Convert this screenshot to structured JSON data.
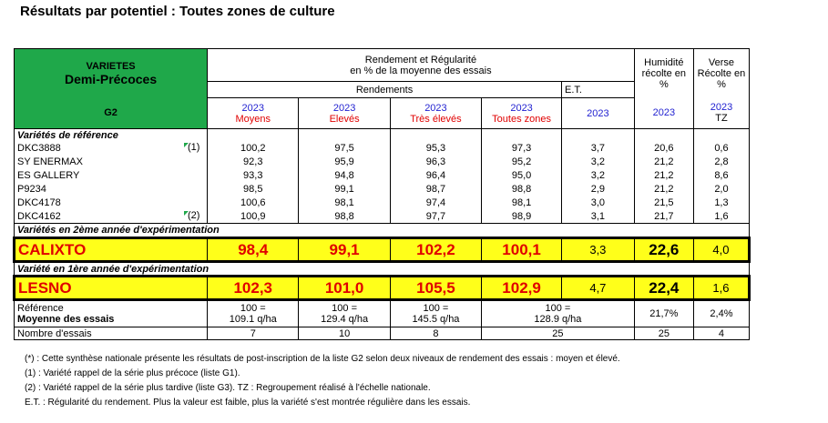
{
  "title": "Résultats par potentiel : Toutes zones de culture",
  "header": {
    "varietes": "VARIETES",
    "group": "Demi-Précoces",
    "list": "G2",
    "rendement_line1": "Rendement et Régularité",
    "rendement_line2": "en % de la moyenne des essais",
    "rendements": "Rendements",
    "et": "E.T.",
    "humidite_line1": "Humidité",
    "humidite_line2": "récolte en",
    "humidite_line3": "%",
    "verse_line1": "Verse",
    "verse_line2": "Récolte en",
    "verse_line3": "%",
    "year": "2023",
    "moyens": "Moyens",
    "eleves": "Elevés",
    "tres_eleves": "Très élevés",
    "toutes_zones": "Toutes zones",
    "tz": "TZ"
  },
  "sections": {
    "reference": "Variétés de référence",
    "second_year": "Variétés en 2ème année d'expérimentation",
    "first_year": "Variété en 1ère année d'expérimentation"
  },
  "reference_rows": [
    {
      "name": "DKC3888",
      "tag": "(1)",
      "moyens": "100,2",
      "eleves": "97,5",
      "tres_eleves": "95,3",
      "toutes": "97,3",
      "et": "3,7",
      "hum": "20,6",
      "verse": "0,6"
    },
    {
      "name": "SY ENERMAX",
      "tag": "",
      "moyens": "92,3",
      "eleves": "95,9",
      "tres_eleves": "96,3",
      "toutes": "95,2",
      "et": "3,2",
      "hum": "21,2",
      "verse": "2,8"
    },
    {
      "name": "ES GALLERY",
      "tag": "",
      "moyens": "93,3",
      "eleves": "94,8",
      "tres_eleves": "96,4",
      "toutes": "95,0",
      "et": "3,2",
      "hum": "21,2",
      "verse": "8,6"
    },
    {
      "name": "P9234",
      "tag": "",
      "moyens": "98,5",
      "eleves": "99,1",
      "tres_eleves": "98,7",
      "toutes": "98,8",
      "et": "2,9",
      "hum": "21,2",
      "verse": "2,0"
    },
    {
      "name": "DKC4178",
      "tag": "",
      "moyens": "100,6",
      "eleves": "98,1",
      "tres_eleves": "97,4",
      "toutes": "98,1",
      "et": "3,0",
      "hum": "21,5",
      "verse": "1,3"
    },
    {
      "name": "DKC4162",
      "tag": "(2)",
      "moyens": "100,9",
      "eleves": "98,8",
      "tres_eleves": "97,7",
      "toutes": "98,9",
      "et": "3,1",
      "hum": "21,7",
      "verse": "1,6"
    }
  ],
  "calixto": {
    "name": "CALIXTO",
    "moyens": "98,4",
    "eleves": "99,1",
    "tres_eleves": "102,2",
    "toutes": "100,1",
    "et": "3,3",
    "hum": "22,6",
    "verse": "4,0"
  },
  "lesno": {
    "name": "LESNO",
    "moyens": "102,3",
    "eleves": "101,0",
    "tres_eleves": "105,5",
    "toutes": "102,9",
    "et": "4,7",
    "hum": "22,4",
    "verse": "1,6"
  },
  "reference_row": {
    "label1": "Référence",
    "label2": "Moyenne des essais",
    "moyens1": "100 =",
    "moyens2": "109.1 q/ha",
    "eleves1": "100 =",
    "eleves2": "129.4 q/ha",
    "tres1": "100 =",
    "tres2": "145.5 q/ha",
    "toutes1": "100 =",
    "toutes2": "128.9 q/ha",
    "hum": "21,7%",
    "verse": "2,4%"
  },
  "nombre_row": {
    "label": "Nombre d'essais",
    "moyens": "7",
    "eleves": "10",
    "tres": "8",
    "toutes": "25",
    "hum": "25",
    "verse": "4"
  },
  "notes": [
    "(*) : Cette synthèse nationale présente les résultats de post-inscription de la liste G2 selon deux niveaux de rendement des essais : moyen et élevé.",
    "(1) : Variété rappel de la série plus précoce (liste G1).",
    "(2) : Variété rappel de la série plus tardive (liste G3). TZ : Regroupement réalisé à l'échelle nationale.",
    "E.T. : Régularité du rendement. Plus la valeur est faible, plus la variété s'est montrée régulière dans les essais."
  ],
  "colors": {
    "header_green": "#1fa84a",
    "highlight_yellow": "#ffff1a",
    "value_red": "#e00000",
    "year_blue": "#1f1fd0"
  }
}
